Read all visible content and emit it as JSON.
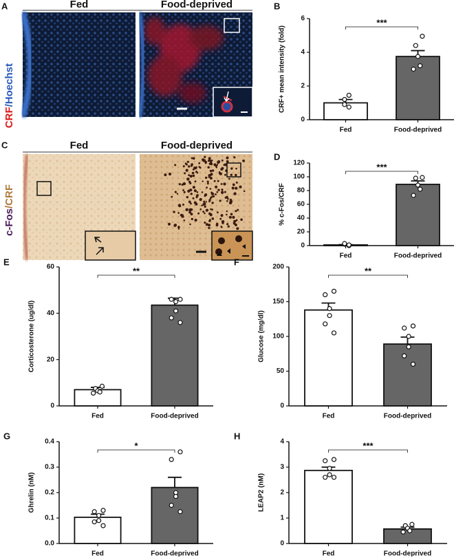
{
  "panels": {
    "A": {
      "letter": "A",
      "columns": [
        "Fed",
        "Food-deprived"
      ],
      "stain": [
        "CRF",
        "/Hoechst"
      ]
    },
    "C": {
      "letter": "C",
      "columns": [
        "Fed",
        "Food-deprived"
      ],
      "stain": [
        "c-Fos",
        "/CRF"
      ]
    }
  },
  "chart_data": [
    {
      "type": "bar",
      "panel": "B",
      "ylabel": "CRF+ mean intensity (fold)",
      "significance": "***",
      "categories": [
        "Fed",
        "Food-deprived"
      ],
      "colors": [
        "#ffffff",
        "#666666"
      ],
      "values": [
        1.0,
        3.75
      ],
      "errors": [
        0.2,
        0.35
      ],
      "points": [
        [
          1.45,
          1.2,
          0.9,
          0.75
        ],
        [
          4.95,
          4.4,
          3.75,
          3.2,
          3.0
        ]
      ],
      "ylim": [
        0,
        6
      ],
      "yticks": [
        0,
        2,
        4,
        6
      ]
    },
    {
      "type": "bar",
      "panel": "D",
      "ylabel": "% c-Fos/CRF",
      "significance": "***",
      "categories": [
        "Fed",
        "Food-deprived"
      ],
      "colors": [
        "#ffffff",
        "#666666"
      ],
      "values": [
        1,
        89
      ],
      "errors": [
        0.5,
        5
      ],
      "points": [
        [
          0,
          2,
          3,
          1
        ],
        [
          99,
          98,
          88,
          82,
          73
        ]
      ],
      "ylim": [
        0,
        120
      ],
      "yticks": [
        0,
        20,
        40,
        60,
        80,
        100,
        120
      ]
    },
    {
      "type": "bar",
      "panel": "E",
      "ylabel": "Corticosterone (ug/dl)",
      "significance": "**",
      "categories": [
        "Fed",
        "Food-deprived"
      ],
      "colors": [
        "#ffffff",
        "#666666"
      ],
      "values": [
        7,
        43.5
      ],
      "errors": [
        1,
        3
      ],
      "points": [
        [
          8.5,
          7.5,
          6.5,
          6,
          5.5
        ],
        [
          46,
          46,
          45,
          41,
          38,
          36
        ]
      ],
      "ylim": [
        0,
        60
      ],
      "yticks": [
        0,
        20,
        40,
        60
      ]
    },
    {
      "type": "bar",
      "panel": "F",
      "ylabel": "Glucose (mg/dl)",
      "significance": "**",
      "categories": [
        "Fed",
        "Food-deprived"
      ],
      "colors": [
        "#ffffff",
        "#666666"
      ],
      "values": [
        138,
        89
      ],
      "errors": [
        10,
        10
      ],
      "points": [
        [
          165,
          160,
          140,
          130,
          118,
          105
        ],
        [
          115,
          112,
          100,
          85,
          72,
          60
        ]
      ],
      "ylim": [
        0,
        200
      ],
      "yticks": [
        0,
        50,
        100,
        150,
        200
      ]
    },
    {
      "type": "bar",
      "panel": "G",
      "ylabel": "Ghrelin (nM)",
      "significance": "*",
      "categories": [
        "Fed",
        "Food-deprived"
      ],
      "colors": [
        "#ffffff",
        "#666666"
      ],
      "values": [
        0.103,
        0.22
      ],
      "errors": [
        0.012,
        0.04
      ],
      "points": [
        [
          0.13,
          0.125,
          0.11,
          0.09,
          0.085,
          0.07
        ],
        [
          0.36,
          0.33,
          0.2,
          0.185,
          0.15,
          0.125
        ]
      ],
      "ylim": [
        0,
        0.4
      ],
      "yticks": [
        {
          "value": 0,
          "label": "0.0"
        },
        0.1,
        0.2,
        0.3,
        0.4
      ]
    },
    {
      "type": "bar",
      "panel": "H",
      "ylabel": "LEAP2 (nM)",
      "significance": "***",
      "categories": [
        "Fed",
        "Food-deprived"
      ],
      "colors": [
        "#ffffff",
        "#666666"
      ],
      "values": [
        2.87,
        0.57
      ],
      "errors": [
        0.13,
        0.07
      ],
      "points": [
        [
          3.3,
          3.25,
          2.95,
          2.7,
          2.6,
          2.6
        ],
        [
          0.75,
          0.7,
          0.6,
          0.5,
          0.45
        ]
      ],
      "ylim": [
        0,
        4
      ],
      "yticks": [
        0,
        1,
        2,
        3,
        4
      ]
    }
  ]
}
